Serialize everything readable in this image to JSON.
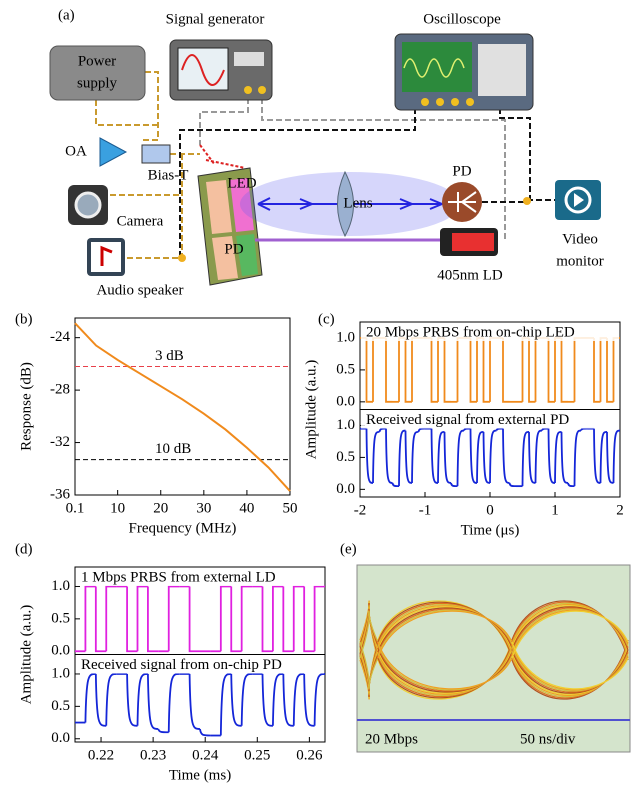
{
  "diagram": {
    "panel_label": "(a)",
    "signal_generator": "Signal generator",
    "oscilloscope": "Oscilloscope",
    "power_supply": [
      "Power",
      "supply"
    ],
    "oa": "OA",
    "bias_t": "Bias-T",
    "camera": "Camera",
    "led": "LED",
    "chip_pd": "PD",
    "lens": "Lens",
    "pd": "PD",
    "video_monitor": [
      "Video",
      "monitor"
    ],
    "laser": "405nm LD",
    "speaker": "Audio speaker"
  },
  "chart_data": [
    {
      "type": "line",
      "panel_label": "(b)",
      "x_label": "Frequency (MHz)",
      "y_label": "Response (dB)",
      "x": [
        0.1,
        5,
        10,
        15,
        20,
        25,
        30,
        35,
        40,
        45,
        50
      ],
      "values": [
        -22.9,
        -24.6,
        -25.7,
        -26.7,
        -27.7,
        -28.7,
        -29.8,
        -31.0,
        -32.4,
        -33.9,
        -35.7
      ],
      "color": "#f08a1c",
      "xlim": [
        0.1,
        50
      ],
      "xticks": [
        0.1,
        10,
        20,
        30,
        40,
        50
      ],
      "ylim": [
        -36,
        -22.5
      ],
      "yticks": [
        -24,
        -28,
        -32,
        -36
      ],
      "hlines": [
        {
          "value": -26.2,
          "label": "3 dB",
          "color": "#e8404a"
        },
        {
          "value": -33.3,
          "label": "10 dB",
          "color": "#000000"
        }
      ]
    },
    {
      "type": "step",
      "panel_label": "(c)",
      "x_label": "Time (μs)",
      "y_label": "Amplitude (a.u.)",
      "xlim": [
        -2,
        2
      ],
      "xticks": [
        -2,
        -1,
        0,
        1,
        2
      ],
      "x": [
        -2,
        -1.9,
        -1.8,
        -1.7,
        -1.6,
        -1.5,
        -1.4,
        -1.3,
        -1.2,
        -1.1,
        -1,
        -0.9,
        -0.8,
        -0.7,
        -0.6,
        -0.5,
        -0.4,
        -0.3,
        -0.2,
        -0.1,
        0,
        0.1,
        0.2,
        0.3,
        0.4,
        0.5,
        0.6,
        0.7,
        0.8,
        0.9,
        1,
        1.1,
        1.2,
        1.3,
        1.4,
        1.5,
        1.6,
        1.7,
        1.8,
        1.9
      ],
      "subplots": [
        {
          "title": "20 Mbps PRBS from on-chip LED",
          "color": "#f08a1c",
          "smooth": false,
          "ylim": [
            -0.12,
            1.25
          ],
          "yticks": [
            {
              "value": 1,
              "label": "1.0"
            },
            0.5,
            {
              "value": 0,
              "label": "0.0"
            }
          ],
          "values": [
            1,
            0,
            1,
            1,
            0,
            0,
            1,
            0,
            1,
            1,
            1,
            0,
            1,
            0,
            0,
            1,
            1,
            0,
            1,
            0,
            1,
            1,
            0,
            0,
            0,
            1,
            0,
            1,
            1,
            0,
            1,
            0,
            0,
            1,
            1,
            1,
            0,
            1,
            0,
            1
          ]
        },
        {
          "title": "Received signal from external PD",
          "color": "#1426d8",
          "smooth": true,
          "ylim": [
            -0.12,
            1.25
          ],
          "yticks": [
            {
              "value": 1,
              "label": "1.0"
            },
            0.5,
            {
              "value": 0,
              "label": "0.0"
            }
          ],
          "values": [
            0.95,
            0.1,
            0.9,
            0.95,
            0.1,
            0.05,
            0.92,
            0.1,
            0.9,
            0.95,
            0.95,
            0.1,
            0.9,
            0.1,
            0.05,
            0.92,
            0.95,
            0.1,
            0.9,
            0.1,
            0.92,
            0.95,
            0.1,
            0.05,
            0.05,
            0.9,
            0.1,
            0.92,
            0.95,
            0.1,
            0.9,
            0.1,
            0.05,
            0.92,
            0.95,
            0.95,
            0.1,
            0.9,
            0.1,
            0.92
          ]
        }
      ]
    },
    {
      "type": "step",
      "panel_label": "(d)",
      "x_label": "Time (ms)",
      "y_label": "Amplitude (a.u.)",
      "xlim": [
        0.215,
        0.263
      ],
      "xticks": [
        0.22,
        0.23,
        0.24,
        0.25,
        0.26
      ],
      "x": [
        0.215,
        0.217,
        0.219,
        0.221,
        0.223,
        0.225,
        0.227,
        0.229,
        0.231,
        0.233,
        0.235,
        0.237,
        0.239,
        0.241,
        0.243,
        0.245,
        0.247,
        0.249,
        0.251,
        0.253,
        0.255,
        0.257,
        0.259,
        0.261
      ],
      "subplots": [
        {
          "title": "1 Mbps PRBS from external LD",
          "color": "#e020e0",
          "smooth": false,
          "ylim": [
            -0.05,
            1.3
          ],
          "yticks": [
            {
              "value": 1,
              "label": "1.0"
            },
            0.5,
            {
              "value": 0,
              "label": "0.0"
            }
          ],
          "values": [
            0,
            1,
            0,
            1,
            1,
            0,
            1,
            0,
            0,
            1,
            1,
            0,
            0,
            0,
            1,
            0,
            1,
            1,
            0,
            1,
            0,
            1,
            0,
            1
          ]
        },
        {
          "title": "Received signal from on-chip PD",
          "color": "#1426d8",
          "smooth": true,
          "ylim": [
            -0.05,
            1.3
          ],
          "yticks": [
            {
              "value": 1,
              "label": "1.0"
            },
            0.5,
            {
              "value": 0,
              "label": "0.0"
            }
          ],
          "values": [
            0.25,
            1.0,
            0.2,
            1.0,
            1.0,
            0.2,
            1.0,
            0.15,
            0.1,
            1.0,
            1.0,
            0.15,
            0.05,
            0.05,
            1.0,
            0.2,
            1.0,
            1.0,
            0.2,
            1.0,
            0.2,
            1.0,
            0.2,
            1.0
          ]
        }
      ]
    }
  ],
  "eye_diagram": {
    "panel_label": "(e)",
    "bit_rate": "20 Mbps",
    "scale": "50 ns/div"
  }
}
